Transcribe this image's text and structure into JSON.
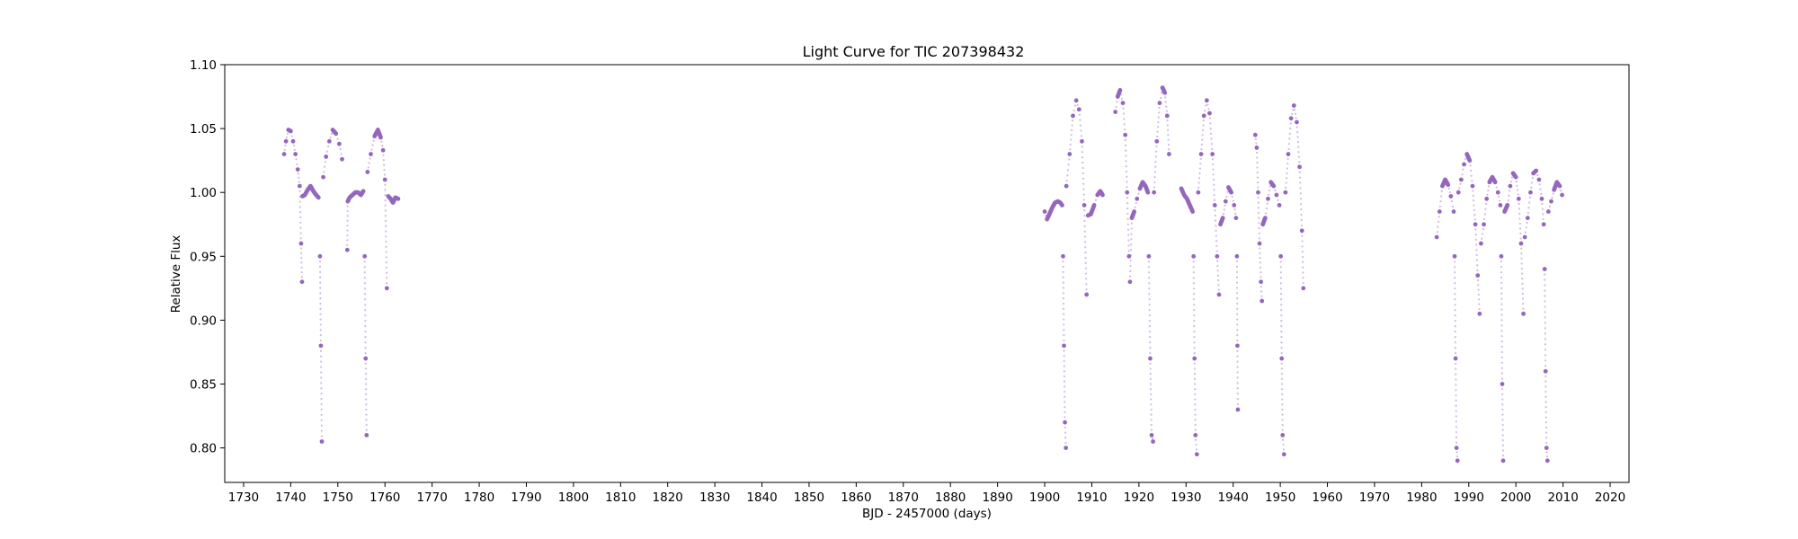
{
  "chart_data": {
    "type": "scatter",
    "title": "Light Curve for TIC 207398432",
    "xlabel": "BJD - 2457000 (days)",
    "ylabel": "Relative Flux",
    "xlim": [
      1726,
      2024
    ],
    "ylim": [
      0.773,
      1.1
    ],
    "xticks": [
      1730,
      1740,
      1750,
      1760,
      1770,
      1780,
      1790,
      1800,
      1810,
      1820,
      1830,
      1840,
      1850,
      1860,
      1870,
      1880,
      1890,
      1900,
      1910,
      1920,
      1930,
      1940,
      1950,
      1960,
      1970,
      1980,
      1990,
      2000,
      2010,
      2020
    ],
    "yticks": [
      0.8,
      0.85,
      0.9,
      0.95,
      1.0,
      1.05,
      1.1
    ],
    "grid": false,
    "legend": "none",
    "color": "#9467bd",
    "series": [
      {
        "segments": [
          {
            "x": [
              1738.6,
              1739.0,
              1739.5,
              1740.0,
              1740.5,
              1741.0,
              1741.5,
              1741.9,
              1742.2,
              1742.4
            ],
            "y": [
              1.03,
              1.04,
              1.049,
              1.048,
              1.04,
              1.03,
              1.018,
              1.005,
              0.96,
              0.93
            ]
          },
          {
            "x": [
              1742.5,
              1743.0,
              1743.6,
              1744.2,
              1744.8,
              1745.4,
              1745.9
            ],
            "y": [
              0.997,
              0.998,
              1.002,
              1.005,
              1.001,
              0.998,
              0.996
            ]
          },
          {
            "x": [
              1746.2,
              1746.4,
              1746.6
            ],
            "y": [
              0.95,
              0.88,
              0.805
            ]
          },
          {
            "x": [
              1746.9,
              1747.5,
              1748.2,
              1748.9,
              1749.6,
              1750.3,
              1750.9
            ],
            "y": [
              1.012,
              1.028,
              1.04,
              1.049,
              1.046,
              1.038,
              1.026
            ]
          },
          {
            "x": [
              1752.0,
              1752.1,
              1752.5,
              1753.1,
              1753.7,
              1754.3,
              1754.9,
              1755.4
            ],
            "y": [
              0.955,
              0.993,
              0.996,
              0.998,
              1.0,
              1.0,
              0.998,
              1.001
            ]
          },
          {
            "x": [
              1755.7,
              1755.9,
              1756.1
            ],
            "y": [
              0.95,
              0.87,
              0.81
            ]
          },
          {
            "x": [
              1756.3,
              1757.0,
              1757.8,
              1758.5,
              1759.1,
              1759.6,
              1760.0,
              1760.4
            ],
            "y": [
              1.016,
              1.03,
              1.044,
              1.049,
              1.043,
              1.033,
              1.01,
              0.925
            ]
          },
          {
            "x": [
              1760.7,
              1761.2,
              1761.7,
              1762.2,
              1762.8
            ],
            "y": [
              0.997,
              0.995,
              0.992,
              0.996,
              0.995
            ]
          },
          {
            "x": [
              1900.0,
              1900.5,
              1901.0,
              1901.6,
              1902.2,
              1902.8,
              1903.3,
              1903.7
            ],
            "y": [
              0.985,
              0.979,
              0.983,
              0.988,
              0.992,
              0.993,
              0.992,
              0.99
            ]
          },
          {
            "x": [
              1903.9,
              1904.1,
              1904.3,
              1904.5
            ],
            "y": [
              0.95,
              0.88,
              0.82,
              0.8
            ]
          },
          {
            "x": [
              1904.6,
              1905.3,
              1906.0,
              1906.7,
              1907.3,
              1907.9,
              1908.4,
              1908.9
            ],
            "y": [
              1.005,
              1.03,
              1.06,
              1.072,
              1.065,
              1.04,
              0.99,
              0.92
            ]
          },
          {
            "x": [
              1909.2,
              1909.8,
              1910.5,
              1911.2,
              1911.8,
              1912.3
            ],
            "y": [
              0.982,
              0.983,
              0.99,
              0.998,
              1.001,
              0.998
            ]
          },
          {
            "x": [
              1915.0,
              1915.5,
              1916.0,
              1916.6,
              1917.1,
              1917.5,
              1917.9
            ],
            "y": [
              1.063,
              1.075,
              1.08,
              1.07,
              1.045,
              1.0,
              0.95
            ]
          },
          {
            "x": [
              1918.1,
              1918.5,
              1919.0,
              1919.6,
              1920.2,
              1920.8,
              1921.4,
              1921.9
            ],
            "y": [
              0.93,
              0.98,
              0.985,
              0.995,
              1.003,
              1.008,
              1.005,
              1.0
            ]
          },
          {
            "x": [
              1922.1,
              1922.4,
              1922.7,
              1923.0
            ],
            "y": [
              0.95,
              0.87,
              0.81,
              0.805
            ]
          },
          {
            "x": [
              1923.2,
              1923.8,
              1924.4,
              1925.0,
              1925.5,
              1926.0,
              1926.4
            ],
            "y": [
              1.0,
              1.04,
              1.07,
              1.082,
              1.078,
              1.06,
              1.03
            ]
          },
          {
            "x": [
              1929.0,
              1929.6,
              1930.2,
              1930.8,
              1931.4
            ],
            "y": [
              1.003,
              0.998,
              0.995,
              0.99,
              0.985
            ]
          },
          {
            "x": [
              1931.6,
              1931.8,
              1932.0,
              1932.3
            ],
            "y": [
              0.95,
              0.87,
              0.81,
              0.795
            ]
          },
          {
            "x": [
              1932.6,
              1933.2,
              1933.8,
              1934.4,
              1935.0,
              1935.6,
              1936.1,
              1936.6,
              1937.0
            ],
            "y": [
              1.0,
              1.03,
              1.06,
              1.072,
              1.062,
              1.03,
              0.99,
              0.95,
              0.92
            ]
          },
          {
            "x": [
              1937.3,
              1937.8,
              1938.4,
              1939.0,
              1939.6,
              1940.2,
              1940.6
            ],
            "y": [
              0.975,
              0.98,
              0.993,
              1.004,
              1.0,
              0.99,
              0.98
            ]
          },
          {
            "x": [
              1940.8,
              1940.9,
              1941.0
            ],
            "y": [
              0.95,
              0.88,
              0.83
            ]
          },
          {
            "x": [
              1944.7,
              1945.0,
              1945.3,
              1945.6,
              1945.9,
              1946.1
            ],
            "y": [
              1.045,
              1.035,
              1.0,
              0.96,
              0.93,
              0.915
            ]
          },
          {
            "x": [
              1946.3,
              1946.8,
              1947.4,
              1948.0,
              1948.6,
              1949.2,
              1949.8
            ],
            "y": [
              0.975,
              0.98,
              0.995,
              1.008,
              1.005,
              0.998,
              0.99
            ]
          },
          {
            "x": [
              1950.1,
              1950.3,
              1950.5,
              1950.8
            ],
            "y": [
              0.95,
              0.87,
              0.81,
              0.795
            ]
          },
          {
            "x": [
              1951.1,
              1951.7,
              1952.3,
              1952.9,
              1953.5,
              1954.1,
              1954.6,
              1954.9
            ],
            "y": [
              1.0,
              1.03,
              1.058,
              1.068,
              1.055,
              1.02,
              0.97,
              0.925
            ]
          },
          {
            "x": [
              1983.2,
              1983.8,
              1984.4,
              1985.0,
              1985.6,
              1986.2,
              1986.8
            ],
            "y": [
              0.965,
              0.985,
              1.005,
              1.01,
              1.006,
              0.997,
              0.985
            ]
          },
          {
            "x": [
              1987.0,
              1987.2,
              1987.4,
              1987.6
            ],
            "y": [
              0.95,
              0.87,
              0.8,
              0.79
            ]
          },
          {
            "x": [
              1987.8,
              1988.4,
              1989.0,
              1989.6,
              1990.2,
              1990.8,
              1991.4,
              1991.9,
              1992.3
            ],
            "y": [
              1.0,
              1.01,
              1.022,
              1.03,
              1.025,
              1.005,
              0.975,
              0.935,
              0.905
            ]
          },
          {
            "x": [
              1992.6,
              1993.2,
              1993.8,
              1994.4,
              1995.0,
              1995.6,
              1996.2,
              1996.7
            ],
            "y": [
              0.96,
              0.975,
              0.995,
              1.008,
              1.012,
              1.008,
              1.0,
              0.99
            ]
          },
          {
            "x": [
              1996.9,
              1997.1,
              1997.3
            ],
            "y": [
              0.95,
              0.85,
              0.79
            ]
          },
          {
            "x": [
              1997.6,
              1998.2,
              1998.8,
              1999.4,
              2000.0,
              2000.6,
              2001.1,
              2001.6
            ],
            "y": [
              0.985,
              0.99,
              1.005,
              1.015,
              1.012,
              0.995,
              0.96,
              0.905
            ]
          },
          {
            "x": [
              2001.9,
              2002.5,
              2003.1,
              2003.7,
              2004.3,
              2004.9,
              2005.5,
              2005.9
            ],
            "y": [
              0.965,
              0.98,
              1.0,
              1.015,
              1.017,
              1.01,
              0.995,
              0.975
            ]
          },
          {
            "x": [
              2006.1,
              2006.3,
              2006.5,
              2006.7
            ],
            "y": [
              0.94,
              0.86,
              0.8,
              0.79
            ]
          },
          {
            "x": [
              2006.9,
              2007.5,
              2008.1,
              2008.7,
              2009.3,
              2009.8
            ],
            "y": [
              0.985,
              0.993,
              1.002,
              1.008,
              1.005,
              0.998
            ]
          }
        ]
      }
    ]
  }
}
